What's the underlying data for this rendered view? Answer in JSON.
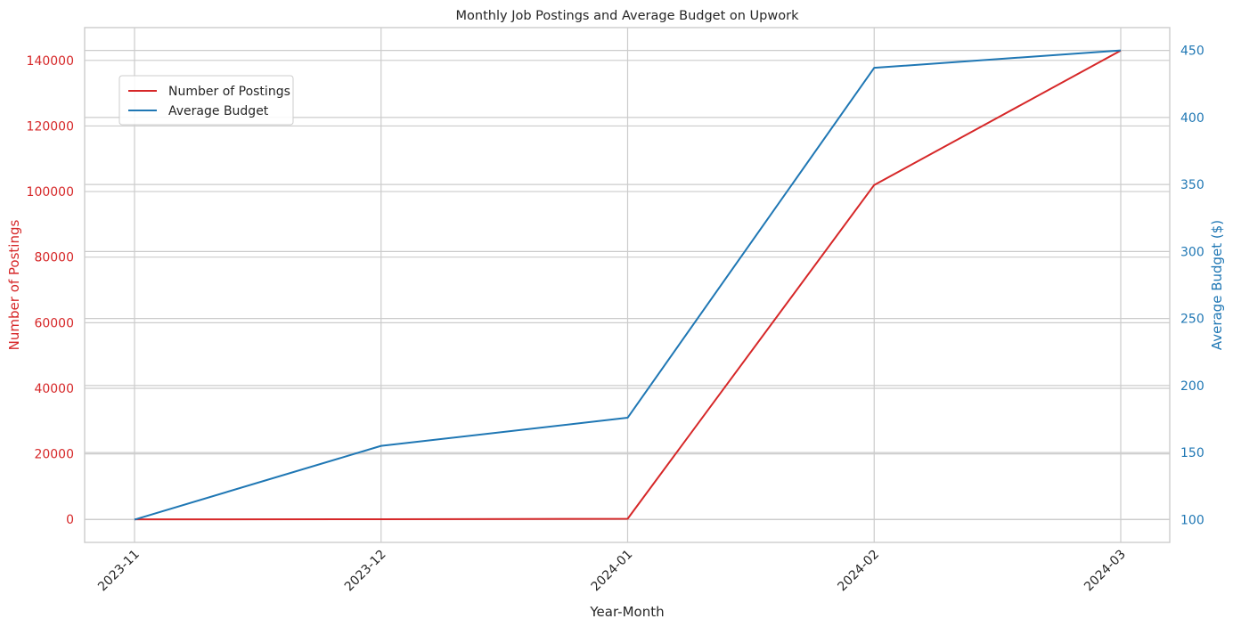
{
  "chart_data": {
    "type": "line",
    "title": "Monthly Job Postings and Average Budget on Upwork",
    "xlabel": "Year-Month",
    "categories": [
      "2023-11",
      "2023-12",
      "2024-01",
      "2024-02",
      "2024-03"
    ],
    "grid": true,
    "legend_placement": "upper-left",
    "y_left": {
      "label": "Number of Postings",
      "color": "#d62728",
      "ticks": [
        0,
        20000,
        40000,
        60000,
        80000,
        100000,
        120000,
        140000
      ],
      "ylim": [
        -7000,
        150000
      ]
    },
    "y_right": {
      "label": "Average Budget ($)",
      "color": "#1f77b4",
      "ticks": [
        100,
        150,
        200,
        250,
        300,
        350,
        400,
        450
      ],
      "ylim": [
        83,
        467
      ]
    },
    "series": [
      {
        "name": "Number of Postings",
        "axis": "left",
        "color": "#d62728",
        "values": [
          20,
          60,
          200,
          102000,
          143000
        ]
      },
      {
        "name": "Average Budget",
        "axis": "right",
        "color": "#1f77b4",
        "values": [
          100,
          155,
          176,
          437,
          450
        ]
      }
    ]
  }
}
